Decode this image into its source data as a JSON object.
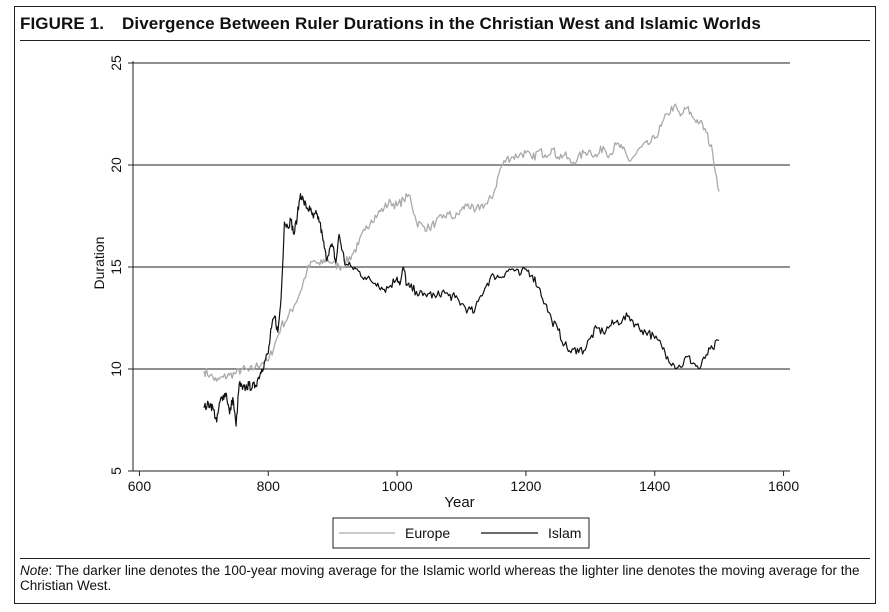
{
  "figure": {
    "label": "FIGURE 1.",
    "title": "Divergence Between Ruler Durations in the Christian West and Islamic Worlds",
    "note_prefix": "Note",
    "note_text": ": The darker line denotes the 100-year moving average for the Islamic world whereas the lighter line denotes the moving average for the Christian West."
  },
  "colors": {
    "europe": "#aaaaaa",
    "islam": "#111111",
    "axis": "#222222",
    "grid": "#222222"
  },
  "chart_data": {
    "type": "line",
    "title": "Divergence Between Ruler Durations in the Christian West and Islamic Worlds",
    "xlabel": "Year",
    "ylabel": "Duration",
    "xlim": [
      590,
      1610
    ],
    "ylim": [
      5,
      25
    ],
    "xticks": [
      600,
      800,
      1000,
      1200,
      1400,
      1600
    ],
    "yticks": [
      5,
      10,
      15,
      20,
      25
    ],
    "gridlines": [
      10,
      15,
      20,
      25
    ],
    "legend": "bottom-center",
    "series": [
      {
        "name": "Europe",
        "color": "#aaaaaa",
        "x": [
          700,
          710,
          720,
          730,
          740,
          750,
          760,
          770,
          780,
          790,
          800,
          810,
          820,
          830,
          840,
          850,
          860,
          870,
          880,
          890,
          900,
          910,
          920,
          930,
          940,
          950,
          960,
          970,
          980,
          990,
          1000,
          1010,
          1020,
          1030,
          1040,
          1050,
          1060,
          1070,
          1080,
          1090,
          1100,
          1110,
          1120,
          1130,
          1140,
          1150,
          1160,
          1170,
          1180,
          1190,
          1200,
          1210,
          1220,
          1230,
          1240,
          1250,
          1260,
          1270,
          1280,
          1290,
          1300,
          1310,
          1320,
          1330,
          1340,
          1350,
          1360,
          1370,
          1380,
          1390,
          1400,
          1410,
          1420,
          1430,
          1440,
          1450,
          1460,
          1470,
          1480,
          1490,
          1500
        ],
        "values": [
          9.9,
          9.7,
          9.4,
          9.6,
          9.7,
          9.8,
          10.0,
          9.9,
          10.1,
          10.3,
          10.4,
          11.2,
          12.1,
          12.5,
          13.1,
          13.8,
          14.8,
          15.3,
          15.1,
          15.4,
          15.2,
          15.0,
          15.2,
          15.6,
          16.1,
          16.8,
          17.3,
          17.6,
          17.9,
          18.2,
          18.0,
          18.3,
          18.5,
          17.2,
          17.0,
          16.9,
          17.2,
          17.4,
          17.6,
          17.4,
          17.8,
          18.1,
          17.7,
          18.0,
          18.1,
          18.6,
          19.8,
          20.3,
          20.4,
          20.5,
          20.6,
          20.3,
          20.7,
          20.5,
          20.8,
          20.4,
          20.5,
          20.1,
          20.3,
          20.6,
          20.7,
          20.4,
          20.9,
          20.5,
          21.0,
          20.8,
          20.2,
          20.5,
          20.9,
          21.0,
          21.3,
          21.9,
          22.5,
          22.9,
          22.4,
          22.8,
          22.3,
          22.1,
          21.6,
          20.6,
          18.7
        ]
      },
      {
        "name": "Islam",
        "color": "#111111",
        "x": [
          700,
          705,
          710,
          715,
          720,
          725,
          730,
          735,
          740,
          745,
          750,
          755,
          760,
          765,
          770,
          775,
          780,
          785,
          790,
          795,
          800,
          805,
          810,
          815,
          820,
          825,
          830,
          835,
          840,
          845,
          850,
          855,
          860,
          865,
          870,
          875,
          880,
          885,
          890,
          895,
          900,
          905,
          910,
          915,
          920,
          930,
          940,
          950,
          960,
          970,
          980,
          990,
          1000,
          1005,
          1010,
          1015,
          1020,
          1030,
          1040,
          1050,
          1060,
          1070,
          1080,
          1090,
          1100,
          1110,
          1120,
          1130,
          1140,
          1150,
          1160,
          1170,
          1180,
          1190,
          1200,
          1210,
          1220,
          1230,
          1240,
          1250,
          1260,
          1270,
          1280,
          1290,
          1300,
          1310,
          1320,
          1330,
          1340,
          1350,
          1360,
          1370,
          1380,
          1390,
          1400,
          1410,
          1420,
          1430,
          1440,
          1450,
          1460,
          1470,
          1480,
          1490,
          1500
        ],
        "values": [
          8.1,
          8.2,
          8.3,
          8.0,
          7.4,
          8.4,
          8.7,
          8.8,
          7.8,
          8.6,
          7.2,
          9.3,
          9.0,
          9.1,
          9.2,
          9.1,
          9.2,
          9.6,
          10.0,
          10.4,
          10.8,
          12.0,
          12.6,
          11.8,
          13.5,
          17.2,
          17.0,
          17.3,
          16.6,
          17.5,
          18.6,
          18.2,
          17.9,
          17.8,
          17.4,
          17.6,
          17.2,
          16.3,
          15.4,
          15.9,
          16.0,
          15.2,
          16.6,
          15.8,
          15.1,
          15.0,
          14.8,
          14.5,
          14.3,
          14.2,
          13.9,
          14.1,
          14.5,
          14.2,
          15.0,
          14.1,
          14.0,
          13.8,
          13.6,
          13.7,
          13.5,
          13.8,
          13.6,
          13.5,
          13.2,
          12.9,
          12.8,
          13.6,
          14.2,
          14.6,
          14.5,
          14.8,
          14.9,
          14.6,
          14.9,
          14.6,
          14.0,
          13.2,
          12.4,
          11.9,
          11.2,
          10.8,
          11.0,
          10.9,
          11.5,
          12.0,
          11.8,
          12.1,
          12.3,
          12.4,
          12.6,
          12.2,
          11.9,
          11.8,
          11.5,
          11.2,
          10.6,
          10.2,
          10.1,
          10.6,
          10.3,
          10.0,
          10.7,
          11.0,
          11.4
        ]
      }
    ]
  }
}
